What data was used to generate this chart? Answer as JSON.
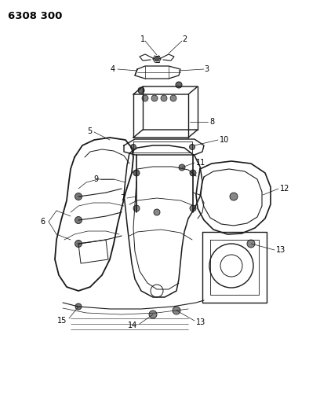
{
  "title": "6308 300",
  "bg_color": "#ffffff",
  "line_color": "#1a1a1a",
  "figsize": [
    4.08,
    5.33
  ],
  "dpi": 100,
  "title_fontsize": 9.5,
  "label_fontsize": 7.0
}
